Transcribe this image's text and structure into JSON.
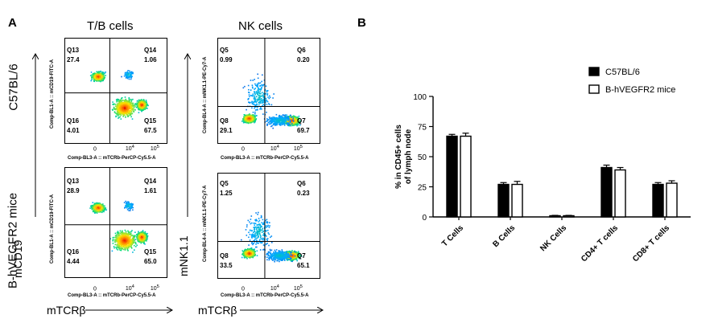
{
  "panel_a": {
    "letter": "A",
    "col_titles": [
      "T/B cells",
      "NK cells"
    ],
    "row_labels": [
      "C57BL/6",
      "B-hVEGFR2 mice"
    ],
    "y_axis_names": [
      "mCD19",
      "mNK1.1"
    ],
    "x_axis_names": [
      "mTCRβ",
      "mTCRβ"
    ],
    "x_caption": "Comp-BL3-A :: mTCRb-PerCP-Cy5.5-A",
    "y_caption_tb": "Comp-BL1-A :: mCD19-FITC-A",
    "y_caption_nk": "Comp-BL4-A :: mNK1.1-PE-Cy7-A",
    "x_ticks": [
      "0",
      "10",
      "4",
      "10",
      "5"
    ],
    "plots": [
      {
        "quadrants": [
          {
            "name": "Q13",
            "value": "27.4"
          },
          {
            "name": "Q14",
            "value": "1.06"
          },
          {
            "name": "Q16",
            "value": "4.01"
          },
          {
            "name": "Q15",
            "value": "67.5"
          }
        ]
      },
      {
        "quadrants": [
          {
            "name": "Q5",
            "value": "0.99"
          },
          {
            "name": "Q6",
            "value": "0.20"
          },
          {
            "name": "Q8",
            "value": "29.1"
          },
          {
            "name": "Q7",
            "value": "69.7"
          }
        ]
      },
      {
        "quadrants": [
          {
            "name": "Q13",
            "value": "28.9"
          },
          {
            "name": "Q14",
            "value": "1.61"
          },
          {
            "name": "Q16",
            "value": "4.44"
          },
          {
            "name": "Q15",
            "value": "65.0"
          }
        ]
      },
      {
        "quadrants": [
          {
            "name": "Q5",
            "value": "1.25"
          },
          {
            "name": "Q6",
            "value": "0.23"
          },
          {
            "name": "Q8",
            "value": "33.5"
          },
          {
            "name": "Q7",
            "value": "65.1"
          }
        ]
      }
    ]
  },
  "panel_b": {
    "letter": "B"
  },
  "chart_data": {
    "type": "bar",
    "categories": [
      "T Cells",
      "B Cells",
      "NK Cells",
      "CD4+ T cells",
      "CD8+ T cells"
    ],
    "series": [
      {
        "name": "C57BL/6",
        "color": "#000000",
        "values": [
          67,
          27,
          1,
          41,
          27
        ],
        "errors": [
          1.5,
          1.5,
          0.3,
          2.0,
          1.5
        ]
      },
      {
        "name": "B-hVEGFR2 mice",
        "color": "#ffffff",
        "values": [
          67,
          27,
          1,
          39,
          28
        ],
        "errors": [
          2.5,
          2.5,
          0.3,
          2.0,
          2.0
        ]
      }
    ],
    "title": "",
    "xlabel": "",
    "ylabel": "% in CD45+ cells of lymph node",
    "ylim": [
      0,
      100
    ],
    "yticks": [
      0,
      25,
      50,
      75,
      100
    ],
    "grid": false,
    "legend": "top-right"
  }
}
